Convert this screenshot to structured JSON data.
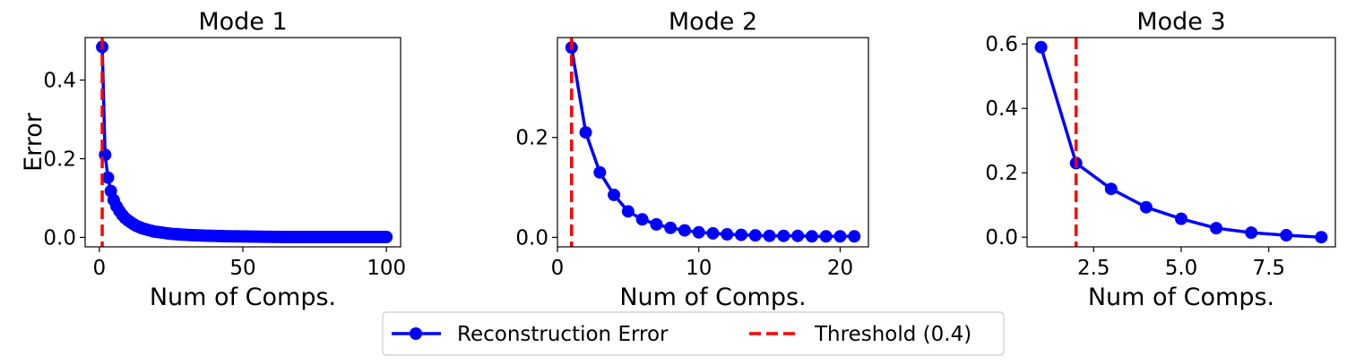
{
  "chart_data": [
    {
      "type": "line",
      "title": "Mode 1",
      "xlabel": "Num of Comps.",
      "ylabel": "Error",
      "xlim": [
        -4.95,
        104.95
      ],
      "ylim": [
        -0.024,
        0.508
      ],
      "xticks": [
        0,
        50,
        100
      ],
      "xtick_labels": [
        "0",
        "50",
        "100"
      ],
      "yticks": [
        0.0,
        0.2,
        0.4
      ],
      "ytick_labels": [
        "0.0",
        "0.2",
        "0.4"
      ],
      "threshold_x": 1,
      "series": [
        {
          "name": "Reconstruction Error",
          "x": [
            1,
            2,
            3,
            4,
            5,
            6,
            7,
            8,
            9,
            10,
            11,
            12,
            13,
            14,
            15,
            16,
            17,
            18,
            19,
            20,
            21,
            22,
            23,
            24,
            25,
            26,
            27,
            28,
            29,
            30,
            31,
            32,
            33,
            34,
            35,
            36,
            37,
            38,
            39,
            40,
            41,
            42,
            43,
            44,
            45,
            46,
            47,
            48,
            49,
            50,
            51,
            52,
            53,
            54,
            55,
            56,
            57,
            58,
            59,
            60,
            61,
            62,
            63,
            64,
            65,
            66,
            67,
            68,
            69,
            70,
            71,
            72,
            73,
            74,
            75,
            76,
            77,
            78,
            79,
            80,
            81,
            82,
            83,
            84,
            85,
            86,
            87,
            88,
            89,
            90,
            91,
            92,
            93,
            94,
            95,
            96,
            97,
            98,
            99,
            100
          ],
          "y": [
            0.484,
            0.21,
            0.152,
            0.118,
            0.095,
            0.079,
            0.067,
            0.057,
            0.049,
            0.043,
            0.038,
            0.033,
            0.029,
            0.026,
            0.023,
            0.021,
            0.019,
            0.017,
            0.015,
            0.014,
            0.013,
            0.012,
            0.011,
            0.01,
            0.009,
            0.0085,
            0.008,
            0.0075,
            0.007,
            0.0066,
            0.0062,
            0.0058,
            0.0055,
            0.0052,
            0.0049,
            0.0046,
            0.0044,
            0.0042,
            0.004,
            0.0038,
            0.0036,
            0.0034,
            0.0032,
            0.003,
            0.0029,
            0.0028,
            0.0027,
            0.0026,
            0.0025,
            0.0024,
            0.0023,
            0.0022,
            0.0021,
            0.002,
            0.0019,
            0.0018,
            0.0017,
            0.0016,
            0.0015,
            0.0014,
            0.0013,
            0.0012,
            0.0011,
            0.001,
            0.001,
            0.001,
            0.001,
            0.001,
            0.001,
            0.001,
            0.001,
            0.001,
            0.001,
            0.001,
            0.001,
            0.001,
            0.001,
            0.001,
            0.001,
            0.001,
            0.001,
            0.001,
            0.001,
            0.001,
            0.001,
            0.001,
            0.001,
            0.001,
            0.001,
            0.001,
            0.001,
            0.001,
            0.001,
            0.001,
            0.001,
            0.001,
            0.001,
            0.001,
            0.001,
            0.001
          ]
        }
      ]
    },
    {
      "type": "line",
      "title": "Mode 2",
      "xlabel": "Num of Comps.",
      "ylabel": "",
      "xlim": [
        0,
        22
      ],
      "ylim": [
        -0.019,
        0.4
      ],
      "xticks": [
        0,
        10,
        20
      ],
      "xtick_labels": [
        "0",
        "10",
        "20"
      ],
      "yticks": [
        0.0,
        0.2
      ],
      "ytick_labels": [
        "0.0",
        "0.2"
      ],
      "threshold_x": 1,
      "series": [
        {
          "name": "Reconstruction Error",
          "x": [
            1,
            2,
            3,
            4,
            5,
            6,
            7,
            8,
            9,
            10,
            11,
            12,
            13,
            14,
            15,
            16,
            17,
            18,
            19,
            20,
            21
          ],
          "y": [
            0.38,
            0.21,
            0.13,
            0.085,
            0.052,
            0.036,
            0.026,
            0.019,
            0.014,
            0.01,
            0.008,
            0.006,
            0.005,
            0.004,
            0.003,
            0.003,
            0.003,
            0.002,
            0.002,
            0.002,
            0.002
          ]
        }
      ]
    },
    {
      "type": "line",
      "title": "Mode 3",
      "xlabel": "Num of Comps.",
      "ylabel": "",
      "xlim": [
        0.6,
        9.4
      ],
      "ylim": [
        -0.03,
        0.62
      ],
      "xticks": [
        2.5,
        5.0,
        7.5
      ],
      "xtick_labels": [
        "2.5",
        "5.0",
        "7.5"
      ],
      "yticks": [
        0.0,
        0.2,
        0.4,
        0.6
      ],
      "ytick_labels": [
        "0.0",
        "0.2",
        "0.4",
        "0.6"
      ],
      "threshold_x": 2,
      "series": [
        {
          "name": "Reconstruction Error",
          "x": [
            1,
            2,
            3,
            4,
            5,
            6,
            7,
            8,
            9
          ],
          "y": [
            0.59,
            0.23,
            0.15,
            0.093,
            0.057,
            0.028,
            0.014,
            0.006,
            0.0
          ]
        }
      ]
    }
  ],
  "legend": {
    "placement": "bottom-center",
    "items": [
      {
        "label": "Reconstruction Error",
        "color": "#0000ff",
        "style": "line-marker"
      },
      {
        "label": "Threshold (0.4)",
        "color": "#ff0000",
        "style": "dashed"
      }
    ]
  },
  "colors": {
    "series": "#0000ff",
    "threshold": "#ff0000"
  }
}
